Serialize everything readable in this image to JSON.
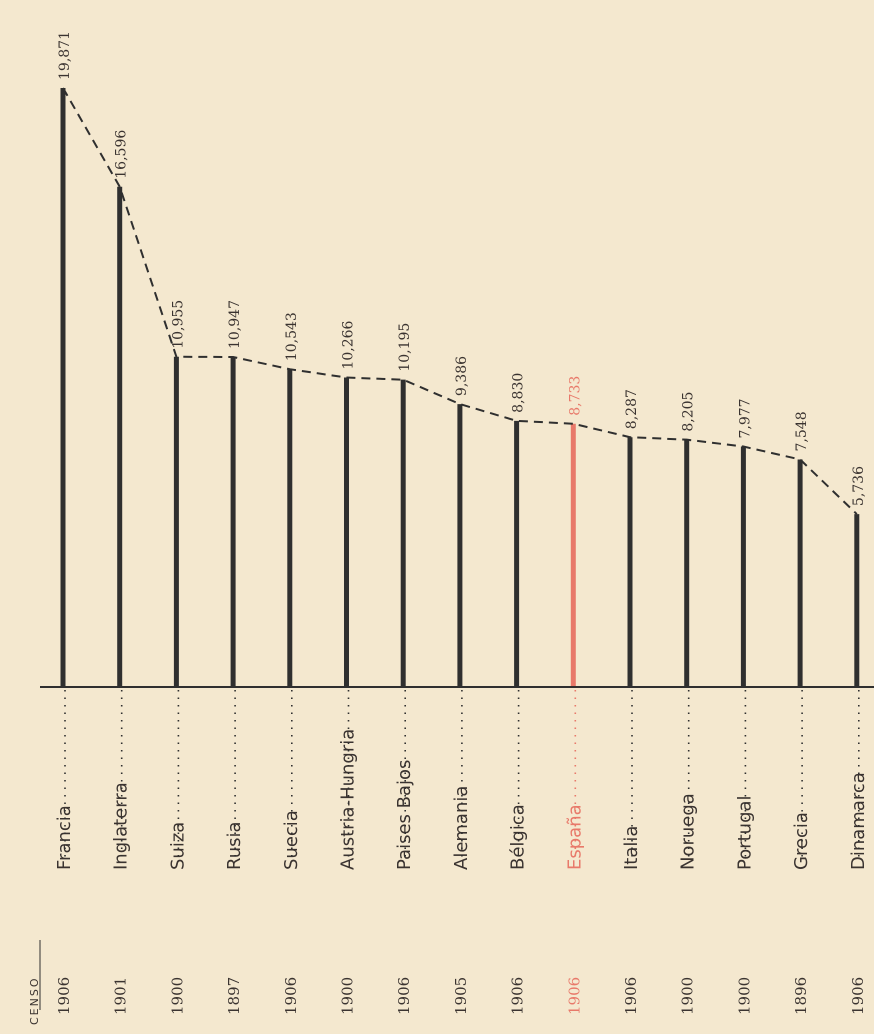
{
  "colors": {
    "background": "#f4e8cf",
    "bar": "#2f2f2f",
    "highlight": "#e8796a",
    "text": "#3a3330"
  },
  "census_header": "CENSO",
  "chart_data": {
    "type": "bar",
    "orientation": "vertical",
    "categories": [
      "Francia",
      "Inglaterra",
      "Suiza",
      "Rusia",
      "Suecia",
      "Austria-Hungria",
      "Paises Bajos",
      "Alemania",
      "Belgica",
      "España",
      "Italia",
      "Noruega",
      "Portugal",
      "Grecia",
      "Dinamarca"
    ],
    "category_labels": [
      "Francia",
      "Inglaterra",
      "Suiza",
      "Rusia",
      "Suecia",
      "Austria-Hungria",
      "Paises Bajos",
      "Alemania",
      "Bélgica",
      "España",
      "Italia",
      "Noruega",
      "Portugal",
      "Grecia",
      "Dinamarca"
    ],
    "census_years": [
      "1906",
      "1901",
      "1900",
      "1897",
      "1906",
      "1900",
      "1906",
      "1905",
      "1906",
      "1906",
      "1906",
      "1900",
      "1900",
      "1896",
      "1906"
    ],
    "values": [
      19.871,
      16.596,
      10.955,
      10.947,
      10.543,
      10.266,
      10.195,
      9.386,
      8.83,
      8.733,
      8.287,
      8.205,
      7.977,
      7.548,
      5.736
    ],
    "value_labels": [
      "19,871",
      "16,596",
      "10,955",
      "10,947",
      "10,543",
      "10,266",
      "10,195",
      "9,386",
      "8,830",
      "8,733",
      "8,287",
      "8,205",
      "7,977",
      "7,548",
      "5,736"
    ],
    "highlight_index": 9,
    "ylim": [
      0,
      19.871
    ],
    "connector": "dashed line joining bar tops",
    "grid": false,
    "legend": "none"
  }
}
